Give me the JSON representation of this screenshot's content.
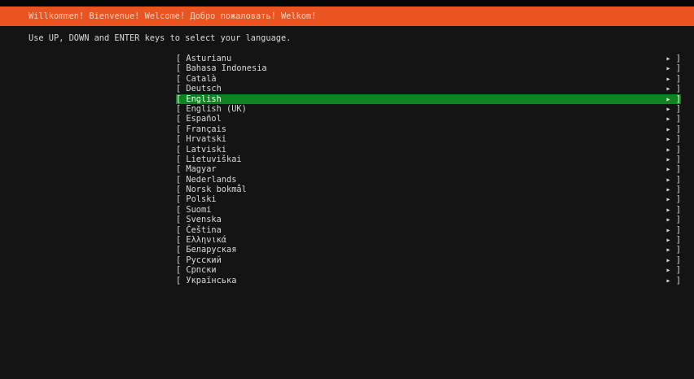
{
  "header": {
    "title": "Willkommen! Bienvenue! Welcome! Добро пожаловать! Welkom!"
  },
  "instructions": "Use UP, DOWN and ENTER keys to select your language.",
  "colors": {
    "banner": "#e95420",
    "selected": "#0e8420",
    "background": "#141414"
  },
  "languages": {
    "selected_index": 4,
    "items": [
      "Asturianu",
      "Bahasa Indonesia",
      "Català",
      "Deutsch",
      "English",
      "English (UK)",
      "Español",
      "Français",
      "Hrvatski",
      "Latviski",
      "Lietuviškai",
      "Magyar",
      "Nederlands",
      "Norsk bokmål",
      "Polski",
      "Suomi",
      "Svenska",
      "Čeština",
      "Ελληνικά",
      "Беларуская",
      "Русский",
      "Српски",
      "Українська"
    ],
    "left_bracket": "[",
    "right_marker": "▸ ]"
  }
}
